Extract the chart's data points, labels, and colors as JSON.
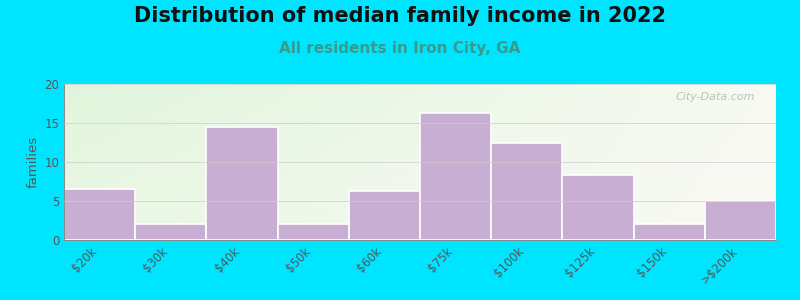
{
  "title": "Distribution of median family income in 2022",
  "subtitle": "All residents in Iron City, GA",
  "categories": [
    "$20k",
    "$30k",
    "$40k",
    "$50k",
    "$60k",
    "$75k",
    "$100k",
    "$125k",
    "$150k",
    ">$200k"
  ],
  "values": [
    6.5,
    2,
    14.5,
    2,
    6.3,
    16.3,
    12.5,
    8.3,
    2,
    5
  ],
  "bar_color": "#c9aed4",
  "bar_edge_color": "#ffffff",
  "outer_background": "#00e5ff",
  "ylabel": "families",
  "ylim": [
    0,
    20
  ],
  "yticks": [
    0,
    5,
    10,
    15,
    20
  ],
  "title_fontsize": 15,
  "subtitle_fontsize": 11,
  "subtitle_color": "#3a9a8a",
  "watermark_text": "City-Data.com",
  "watermark_color": "#b0b8b0"
}
